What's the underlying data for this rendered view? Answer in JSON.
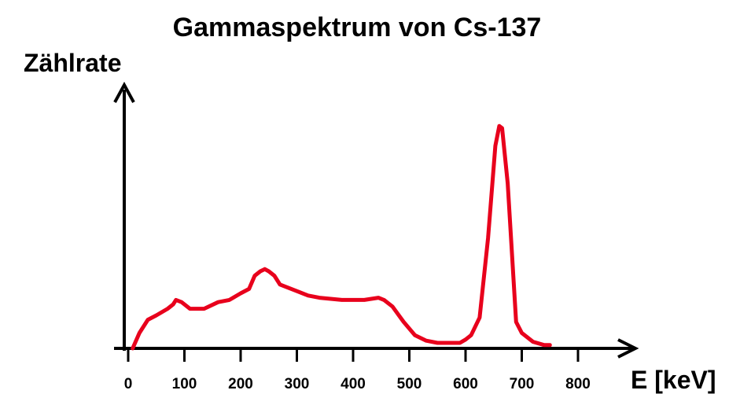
{
  "chart_data": {
    "type": "line",
    "title": "Gammaspektrum von Cs-137",
    "xlabel": "E [keV]",
    "ylabel": "Zählrate",
    "xlim": [
      0,
      900
    ],
    "ylim": [
      0,
      100
    ],
    "xticks": [
      0,
      100,
      200,
      300,
      400,
      500,
      600,
      700,
      800
    ],
    "xtick_labels": [
      "0",
      "100",
      "200",
      "300",
      "400",
      "500",
      "600",
      "700",
      "800"
    ],
    "grid": false,
    "legend": "none",
    "y_ticks_shown": false,
    "series": [
      {
        "color": "#e8001c",
        "x": [
          8,
          20,
          35,
          50,
          70,
          80,
          85,
          95,
          110,
          135,
          160,
          180,
          200,
          215,
          225,
          235,
          243,
          250,
          260,
          270,
          300,
          320,
          340,
          380,
          420,
          445,
          455,
          470,
          490,
          510,
          530,
          550,
          575,
          590,
          600,
          610,
          625,
          640,
          653,
          660,
          665,
          675,
          690,
          700,
          720,
          740,
          750
        ],
        "y": [
          0,
          7,
          13,
          15,
          18,
          20,
          22,
          21,
          18,
          18,
          21,
          22,
          25,
          27,
          33,
          35,
          36,
          35,
          33,
          29,
          26,
          24,
          23,
          22,
          22,
          23,
          22,
          19,
          12,
          6,
          3.5,
          2.5,
          2.5,
          2.5,
          4,
          6,
          14,
          50,
          92,
          101,
          100,
          75,
          12,
          7,
          3,
          1.5,
          1.5
        ]
      }
    ]
  }
}
